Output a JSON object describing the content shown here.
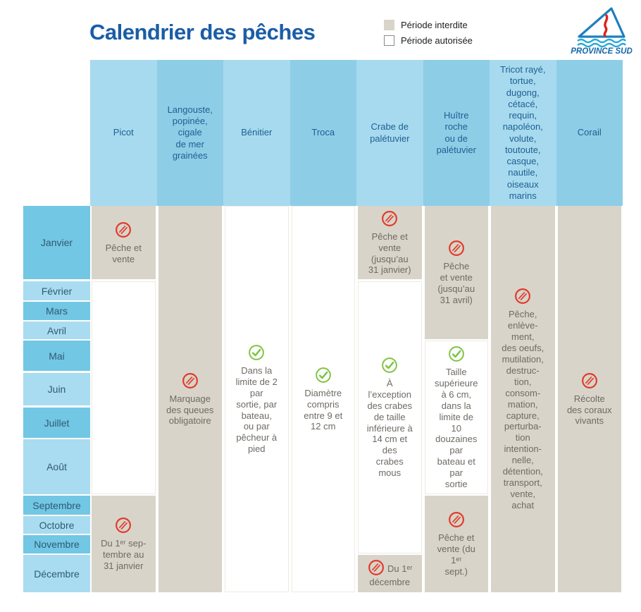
{
  "title": "Calendrier des pêches",
  "legend": {
    "forbidden_label": "Période interdite",
    "allowed_label": "Période autorisée"
  },
  "logo": {
    "text": "PROVINCE SUD"
  },
  "colors": {
    "forbidden_bg": "#d8d4c9",
    "allowed_bg": "#ffffff",
    "header_light": "#a7daee",
    "header_dark": "#8ecde6",
    "month_dark": "#72c7e4",
    "month_light": "#a9dcf0",
    "title_blue": "#1a5da6",
    "header_text": "#1e5f93",
    "month_text": "#2f5a73",
    "body_text": "#6f6b64",
    "red": "#e23a2c",
    "green": "#7dc340"
  },
  "months": [
    {
      "name": "Janvier",
      "shade": "dark"
    },
    {
      "name": "Février",
      "shade": "light"
    },
    {
      "name": "Mars",
      "shade": "dark"
    },
    {
      "name": "Avril",
      "shade": "light"
    },
    {
      "name": "Mai",
      "shade": "dark"
    },
    {
      "name": "Juin",
      "shade": "light"
    },
    {
      "name": "Juillet",
      "shade": "dark"
    },
    {
      "name": "Août",
      "shade": "light"
    },
    {
      "name": "Septembre",
      "shade": "dark"
    },
    {
      "name": "Octobre",
      "shade": "light"
    },
    {
      "name": "Novembre",
      "shade": "dark"
    },
    {
      "name": "Décembre",
      "shade": "light"
    }
  ],
  "species": [
    {
      "name": "Picot",
      "shade": "light",
      "segments": [
        {
          "status": "forbidden",
          "from": 0,
          "to": 0,
          "icon": "prohibited",
          "text": "Pêche et\nvente"
        },
        {
          "status": "allowed",
          "from": 1,
          "to": 7
        },
        {
          "status": "forbidden",
          "from": 8,
          "to": 11,
          "icon": "prohibited",
          "text": "Du 1ᵉʳ sep-\ntembre au\n31 janvier"
        }
      ]
    },
    {
      "name": "Langouste,\npopinée,\ncigale\nde mer\ngrainées",
      "shade": "dark",
      "segments": [
        {
          "status": "forbidden",
          "from": 0,
          "to": 11,
          "icon": "prohibited",
          "text": "Marquage\ndes queues\nobligatoire"
        }
      ]
    },
    {
      "name": "Bénitier",
      "shade": "light",
      "segments": [
        {
          "status": "allowed",
          "from": 0,
          "to": 11,
          "icon": "check",
          "text": "Dans la\nlimite de 2\npar\nsortie, par\nbateau,\nou par\npêcheur à\npied"
        }
      ]
    },
    {
      "name": "Troca",
      "shade": "dark",
      "segments": [
        {
          "status": "allowed",
          "from": 0,
          "to": 11,
          "icon": "check",
          "text": "Diamètre\ncompris\nentre 9 et\n12 cm"
        }
      ]
    },
    {
      "name": "Crabe de\npalétuvier",
      "shade": "light",
      "segments": [
        {
          "status": "forbidden",
          "from": 0,
          "to": 0,
          "icon": "prohibited",
          "text": "Pêche et\nvente\n(jusqu’au\n31 janvier)"
        },
        {
          "status": "allowed",
          "from": 1,
          "to": 10,
          "icon": "check",
          "text": "À\nl’exception\ndes crabes\nde taille\ninférieure à\n14 cm et\ndes\ncrabes\nmous"
        },
        {
          "status": "forbidden",
          "from": 11,
          "to": 11,
          "icon": "prohibited",
          "layout": "inline",
          "text": "Du 1ᵉʳ décembre"
        }
      ]
    },
    {
      "name": "Huître\nroche\nou de\npalétuvier",
      "shade": "dark",
      "segments": [
        {
          "status": "forbidden",
          "from": 0,
          "to": 3,
          "icon": "prohibited",
          "text": "Pêche\net vente\n(jusqu’au\n31 avril)"
        },
        {
          "status": "allowed",
          "from": 4,
          "to": 7,
          "icon": "check",
          "text": "Taille\nsupérieure\nà 6 cm,\ndans la\nlimite de\n10\ndouzaines\npar\nbateau et\npar\nsortie"
        },
        {
          "status": "forbidden",
          "from": 8,
          "to": 11,
          "icon": "prohibited",
          "text": "Pêche et\nvente (du\n1ᵉʳ\nsept.)"
        }
      ]
    },
    {
      "name": "Tricot rayé,\ntortue,\ndugong,\ncétacé,\nrequin,\nnapoléon,\nvolute,\ntoutoute,\ncasque,\nnautile,\noiseaux\nmarins",
      "shade": "light",
      "segments": [
        {
          "status": "forbidden",
          "from": 0,
          "to": 11,
          "icon": "prohibited",
          "text": "Pêche,\nenlève-\nment,\ndes oeufs,\nmutilation,\ndestruc-\ntion,\nconsom-\nmation,\ncapture,\nperturba-\ntion\nintention-\nnelle,\ndétention,\ntransport,\nvente,\nachat"
        }
      ]
    },
    {
      "name": "Corail",
      "shade": "dark",
      "segments": [
        {
          "status": "forbidden",
          "from": 0,
          "to": 11,
          "icon": "prohibited",
          "text": "Récolte\ndes coraux\nvivants"
        }
      ]
    }
  ]
}
